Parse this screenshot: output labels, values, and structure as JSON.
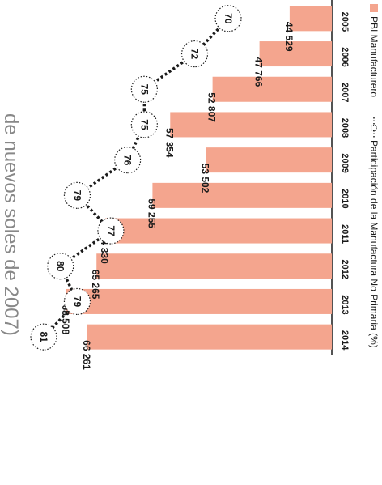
{
  "page_title_fragment": "de nuevos soles de 2007)",
  "chart_data": {
    "type": "bar",
    "orientation": "horizontal",
    "categories": [
      "2005",
      "2006",
      "2007",
      "2008",
      "2009",
      "2010",
      "2011",
      "2012",
      "2013",
      "2014"
    ],
    "series": [
      {
        "name": "PBI Manufacturero",
        "kind": "bar",
        "values": [
          44529,
          47766,
          52807,
          57354,
          53502,
          59255,
          64330,
          65265,
          68508,
          66261
        ],
        "labels": [
          "44 529",
          "47 766",
          "52 807",
          "57 354",
          "53 502",
          "59 255",
          "64 330",
          "65 265",
          "68 508",
          "66 261"
        ],
        "color": "#f4a58e"
      },
      {
        "name": "Participación de la Manufactura No Primaria (%)",
        "kind": "line",
        "values": [
          70,
          72,
          75,
          75,
          76,
          79,
          77,
          80,
          79,
          81
        ],
        "labels": [
          "70",
          "72",
          "75",
          "75",
          "76",
          "79",
          "77",
          "80",
          "79",
          "81"
        ],
        "color": "#1a1a1a"
      }
    ],
    "legend": [
      "PBI Manufacturero",
      "Participación de la Manufactura No Primaria (%)"
    ],
    "legend_position": "bottom",
    "grid": false
  }
}
